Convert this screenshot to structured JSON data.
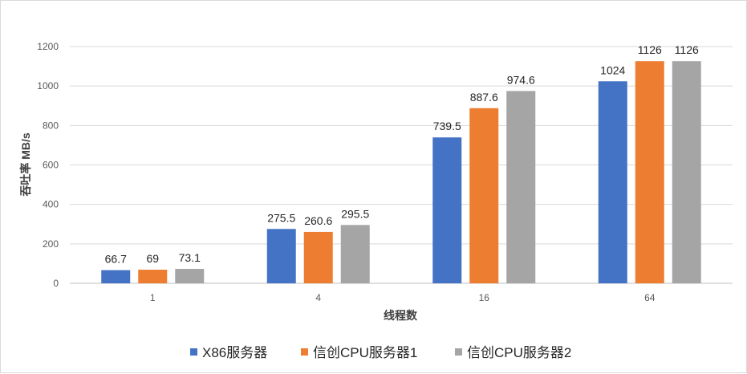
{
  "chart_data": {
    "type": "bar",
    "categories": [
      "1",
      "4",
      "16",
      "64"
    ],
    "series": [
      {
        "name": "X86服务器",
        "values": [
          66.7,
          275.5,
          739.5,
          1024
        ],
        "labels": [
          "66.7",
          "275.5",
          "739.5",
          "1024"
        ],
        "color": "#4472c4"
      },
      {
        "name": "信创CPU服务器1",
        "values": [
          69,
          260.6,
          887.6,
          1126
        ],
        "labels": [
          "69",
          "260.6",
          "887.6",
          "1126"
        ],
        "color": "#ed7d31"
      },
      {
        "name": "信创CPU服务器2",
        "values": [
          73.1,
          295.5,
          974.6,
          1126
        ],
        "labels": [
          "73.1",
          "295.5",
          "974.6",
          "1126"
        ],
        "color": "#a5a5a5"
      }
    ],
    "xlabel": "线程数",
    "ylabel": "吞吐率 MB/s",
    "ylim": [
      0,
      1200
    ],
    "yticks": [
      "0",
      "200",
      "400",
      "600",
      "800",
      "1000",
      "1200"
    ],
    "grid": true,
    "legend": "bottom"
  }
}
